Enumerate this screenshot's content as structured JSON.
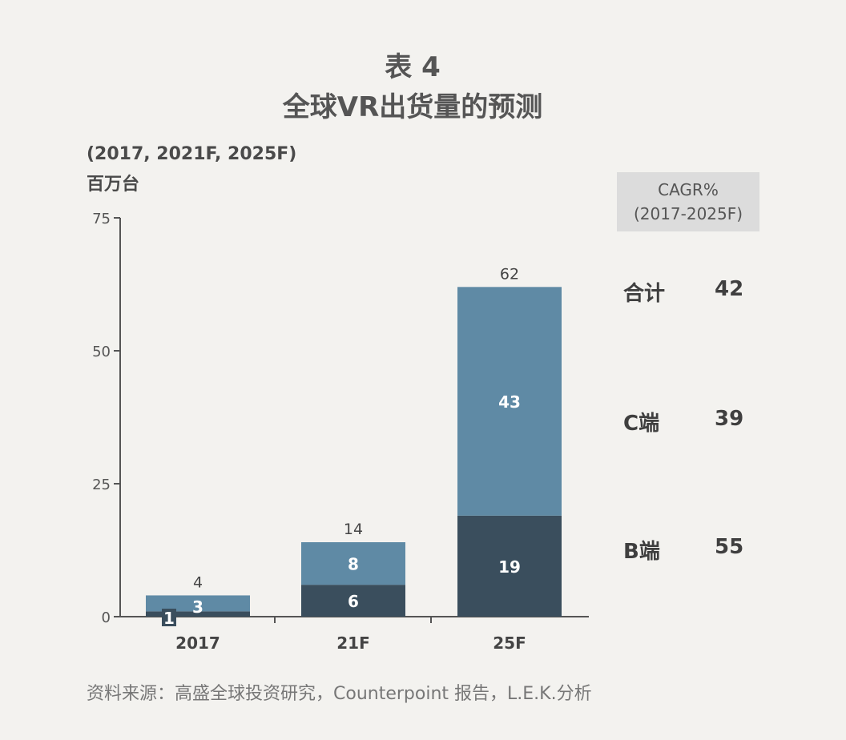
{
  "title_line1": "表 4",
  "title_line2": "全球VR出货量的预测",
  "unit_line1": "(2017, 2021F, 2025F)",
  "unit_line2": "百万台",
  "cagr": {
    "header_line1": "CAGR%",
    "header_line2": "(2017-2025F)",
    "rows": [
      {
        "label": "合计",
        "value": "42"
      },
      {
        "label": "C端",
        "value": "39"
      },
      {
        "label": "B端",
        "value": "55"
      }
    ]
  },
  "source": "资料来源：高盛全球投资研究，Counterpoint 报告，L.E.K.分析",
  "colors": {
    "b_series": "#3a4e5d",
    "c_series": "#5f8aa5",
    "axis": "#555555"
  },
  "chart_data": {
    "type": "bar",
    "stacked": true,
    "categories": [
      "2017",
      "21F",
      "25F"
    ],
    "series": [
      {
        "values": [
          1,
          6,
          19
        ]
      },
      {
        "values": [
          3,
          8,
          43
        ]
      }
    ],
    "totals": [
      4,
      14,
      62
    ],
    "ylim": [
      0,
      75
    ],
    "yticks": [
      0,
      25,
      50,
      75
    ],
    "grid": false
  }
}
